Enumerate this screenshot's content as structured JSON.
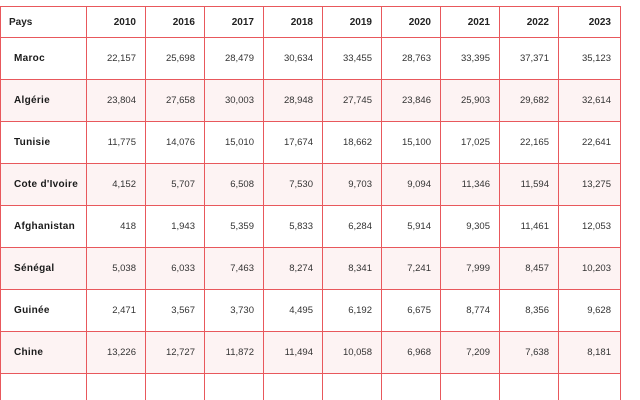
{
  "table": {
    "header_country": "Pays",
    "years": [
      "2010",
      "2016",
      "2017",
      "2018",
      "2019",
      "2020",
      "2021",
      "2022",
      "2023"
    ],
    "rows": [
      {
        "country": "Maroc",
        "values": [
          "22,157",
          "25,698",
          "28,479",
          "30,634",
          "33,455",
          "28,763",
          "33,395",
          "37,371",
          "35,123"
        ]
      },
      {
        "country": "Algérie",
        "values": [
          "23,804",
          "27,658",
          "30,003",
          "28,948",
          "27,745",
          "23,846",
          "25,903",
          "29,682",
          "32,614"
        ]
      },
      {
        "country": "Tunisie",
        "values": [
          "11,775",
          "14,076",
          "15,010",
          "17,674",
          "18,662",
          "15,100",
          "17,025",
          "22,165",
          "22,641"
        ]
      },
      {
        "country": "Cote d'Ivoire",
        "values": [
          "4,152",
          "5,707",
          "6,508",
          "7,530",
          "9,703",
          "9,094",
          "11,346",
          "11,594",
          "13,275"
        ]
      },
      {
        "country": "Afghanistan",
        "values": [
          "418",
          "1,943",
          "5,359",
          "5,833",
          "6,284",
          "5,914",
          "9,305",
          "11,461",
          "12,053"
        ]
      },
      {
        "country": "Sénégal",
        "values": [
          "5,038",
          "6,033",
          "7,463",
          "8,274",
          "8,341",
          "7,241",
          "7,999",
          "8,457",
          "10,203"
        ]
      },
      {
        "country": "Guinée",
        "values": [
          "2,471",
          "3,567",
          "3,730",
          "4,495",
          "6,192",
          "6,675",
          "8,774",
          "8,356",
          "9,628"
        ]
      },
      {
        "country": "Chine",
        "values": [
          "13,226",
          "12,727",
          "11,872",
          "11,494",
          "10,058",
          "6,968",
          "7,209",
          "7,638",
          "8,181"
        ]
      }
    ]
  },
  "colors": {
    "border": "#e8585c",
    "alt_row": "#fdf3f3"
  }
}
